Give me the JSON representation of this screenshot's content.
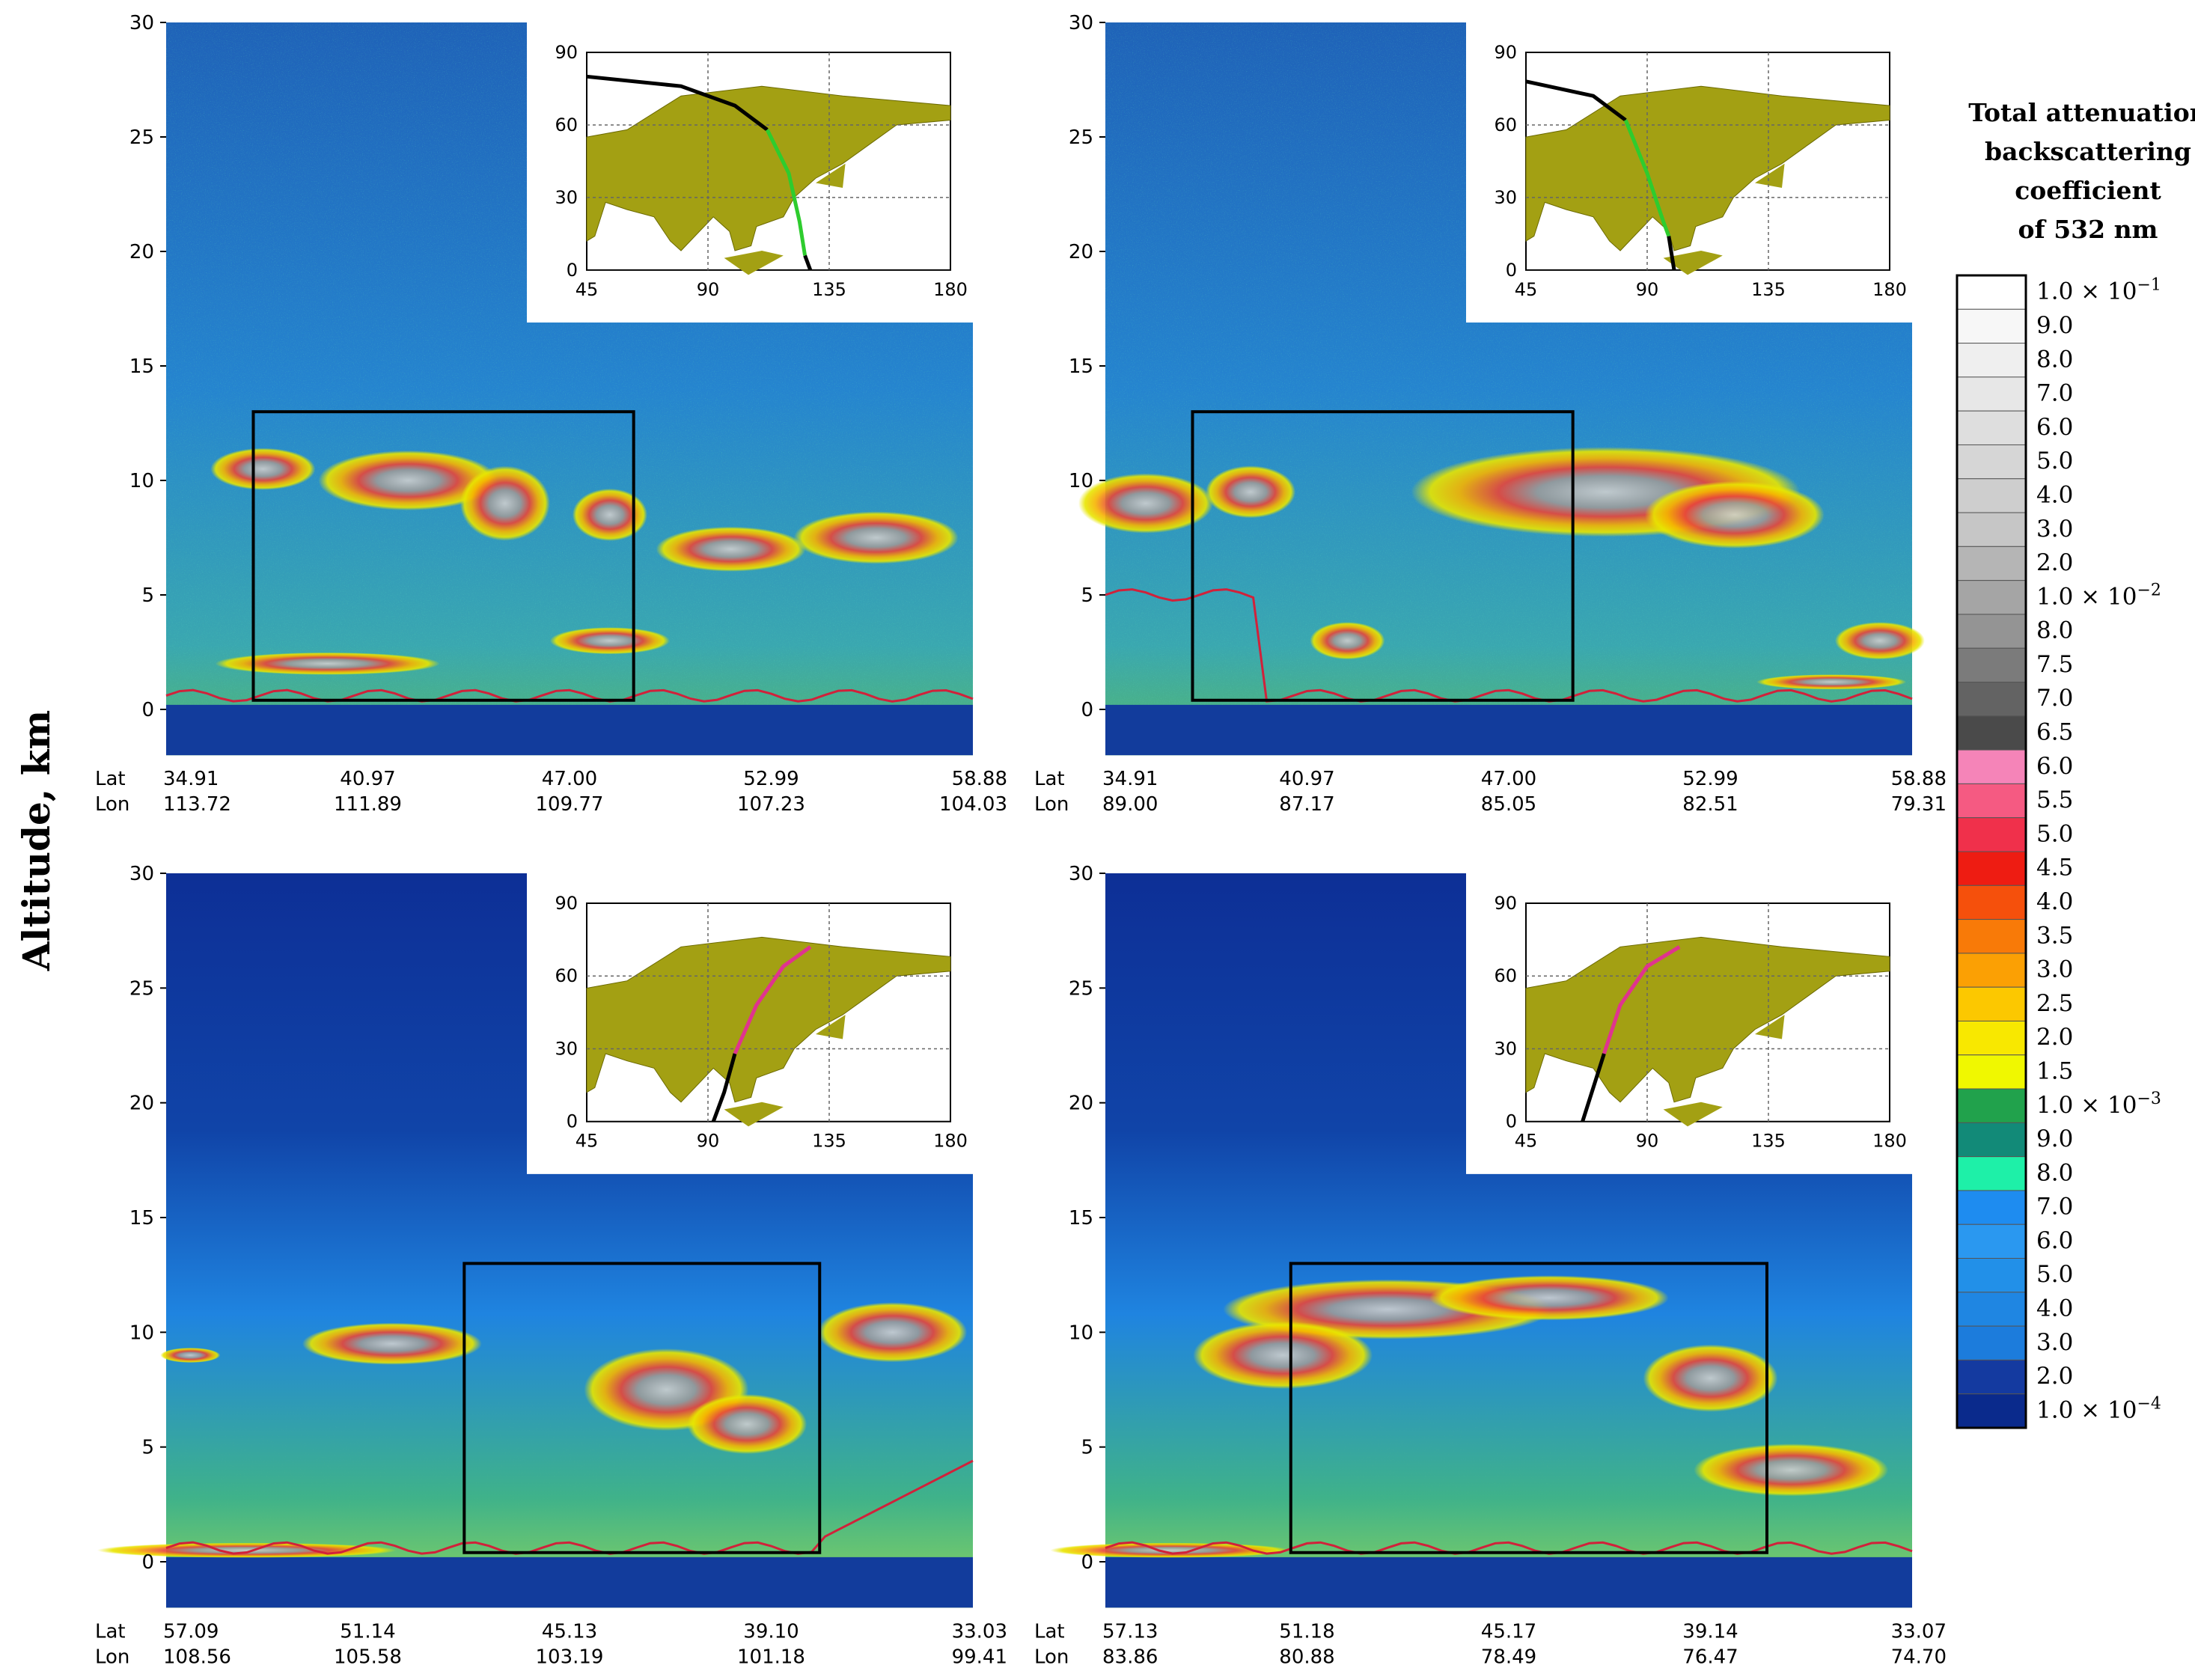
{
  "figure": {
    "ylabel": "Altitude, km",
    "y_ticks": [
      "0",
      "5",
      "10",
      "15",
      "20",
      "25",
      "30"
    ],
    "inset_x_ticks": [
      "45",
      "90",
      "135",
      "180"
    ],
    "inset_y_ticks": [
      "0",
      "30",
      "60",
      "90"
    ],
    "axis_row_labels": [
      "Lat",
      "Lon"
    ]
  },
  "colorbar": {
    "title": [
      "Total attenuation",
      "backscattering",
      "coefficient",
      "of 532 nm"
    ],
    "levels": [
      {
        "label": "1.0 × 10",
        "exp": "−1",
        "color": "#ffffff"
      },
      {
        "label": "9.0",
        "color": "#f7f7f7"
      },
      {
        "label": "8.0",
        "color": "#efefef"
      },
      {
        "label": "7.0",
        "color": "#e7e7e7"
      },
      {
        "label": "6.0",
        "color": "#dedede"
      },
      {
        "label": "5.0",
        "color": "#d6d6d6"
      },
      {
        "label": "4.0",
        "color": "#cecece"
      },
      {
        "label": "3.0",
        "color": "#c6c6c6"
      },
      {
        "label": "2.0",
        "color": "#b5b5b5"
      },
      {
        "label": "1.0 × 10",
        "exp": "−2",
        "color": "#a5a5a5"
      },
      {
        "label": "8.0",
        "color": "#949494"
      },
      {
        "label": "7.5",
        "color": "#7b7b7b"
      },
      {
        "label": "7.0",
        "color": "#636363"
      },
      {
        "label": "6.5",
        "color": "#4a4a4a"
      },
      {
        "label": "6.0",
        "color": "#f584b8"
      },
      {
        "label": "5.5",
        "color": "#f55a82"
      },
      {
        "label": "5.0",
        "color": "#f0304b"
      },
      {
        "label": "4.5",
        "color": "#ee1c12"
      },
      {
        "label": "4.0",
        "color": "#f5500c"
      },
      {
        "label": "3.5",
        "color": "#f87a08"
      },
      {
        "label": "3.0",
        "color": "#fba004"
      },
      {
        "label": "2.5",
        "color": "#fcc800"
      },
      {
        "label": "2.0",
        "color": "#f8e800"
      },
      {
        "label": "1.5",
        "color": "#f0f800"
      },
      {
        "label": "1.0 × 10",
        "exp": "−3",
        "color": "#21a24c"
      },
      {
        "label": "9.0",
        "color": "#128a78"
      },
      {
        "label": "8.0",
        "color": "#1ef0a8"
      },
      {
        "label": "7.0",
        "color": "#1e8cf0"
      },
      {
        "label": "6.0",
        "color": "#2a98f0"
      },
      {
        "label": "5.0",
        "color": "#2290e8"
      },
      {
        "label": "4.0",
        "color": "#1f86e2"
      },
      {
        "label": "3.0",
        "color": "#1c7cdc"
      },
      {
        "label": "2.0",
        "color": "#143aa0"
      },
      {
        "label": "1.0 × 10",
        "exp": "−4",
        "color": "#0a2a8c"
      }
    ]
  },
  "chart_data": [
    {
      "type": "heatmap",
      "panel": "top-left",
      "xlabel": "",
      "ylabel": "Altitude, km",
      "ylim": [
        -2,
        30
      ],
      "lat": [
        "34.91",
        "40.97",
        "47.00",
        "52.99",
        "58.88"
      ],
      "lon": [
        "113.72",
        "111.89",
        "109.77",
        "107.23",
        "104.03"
      ],
      "highlight_box": {
        "lat_from": 37.5,
        "lat_to": 48.8,
        "alt_from": 0.4,
        "alt_to": 13
      },
      "inset": {
        "xlim": [
          45,
          180
        ],
        "ylim": [
          0,
          90
        ],
        "track_color": "#2ecc2e"
      }
    },
    {
      "type": "heatmap",
      "panel": "top-right",
      "ylim": [
        -2,
        30
      ],
      "lat": [
        "34.91",
        "40.97",
        "47.00",
        "52.99",
        "58.88"
      ],
      "lon": [
        "89.00",
        "87.17",
        "85.05",
        "82.51",
        "79.31"
      ],
      "highlight_box": {
        "lat_from": 37.5,
        "lat_to": 48.8,
        "alt_from": 0.4,
        "alt_to": 13
      },
      "inset": {
        "xlim": [
          45,
          180
        ],
        "ylim": [
          0,
          90
        ],
        "track_color": "#2ecc2e"
      }
    },
    {
      "type": "heatmap",
      "panel": "bottom-left",
      "ylim": [
        -2,
        30
      ],
      "lat": [
        "57.09",
        "51.14",
        "45.13",
        "39.10",
        "33.03"
      ],
      "lon": [
        "108.56",
        "105.58",
        "103.19",
        "101.18",
        "99.41"
      ],
      "highlight_box": {
        "lat_from": 48.2,
        "lat_to": 37.6,
        "alt_from": 0.4,
        "alt_to": 13
      },
      "inset": {
        "xlim": [
          45,
          180
        ],
        "ylim": [
          0,
          90
        ],
        "track_color": "#e0338f"
      }
    },
    {
      "type": "heatmap",
      "panel": "bottom-right",
      "ylim": [
        -2,
        30
      ],
      "lat": [
        "57.13",
        "51.18",
        "45.17",
        "39.14",
        "33.07"
      ],
      "lon": [
        "83.86",
        "80.88",
        "78.49",
        "76.47",
        "74.70"
      ],
      "highlight_box": {
        "lat_from": 51.6,
        "lat_to": 37.4,
        "alt_from": 0.4,
        "alt_to": 13
      },
      "inset": {
        "xlim": [
          45,
          180
        ],
        "ylim": [
          0,
          90
        ],
        "track_color": "#e0338f"
      }
    }
  ]
}
